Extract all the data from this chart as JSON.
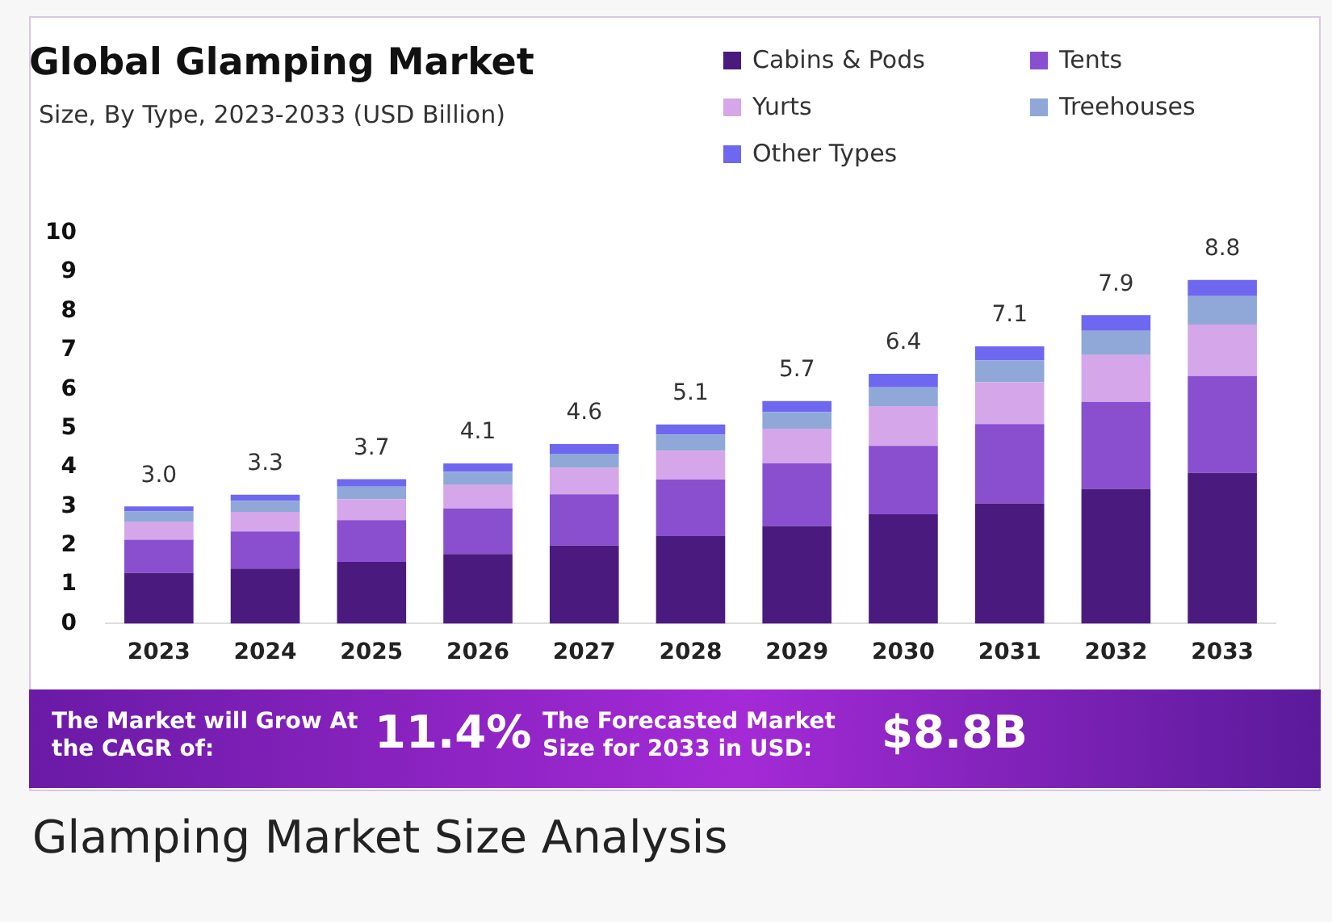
{
  "chart_data": {
    "type": "bar",
    "title": "Global Glamping Market",
    "subtitle": "Size, By Type, 2023-2033 (USD Billion)",
    "categories": [
      "2023",
      "2024",
      "2025",
      "2026",
      "2027",
      "2028",
      "2029",
      "2030",
      "2031",
      "2032",
      "2033"
    ],
    "stacked": true,
    "series": [
      {
        "name": "Cabins & Pods",
        "color": "#4b1a7e",
        "values": [
          1.3,
          1.41,
          1.58,
          1.78,
          2.0,
          2.24,
          2.5,
          2.8,
          3.08,
          3.45,
          3.86
        ]
      },
      {
        "name": "Tents",
        "color": "#8a4fcf",
        "values": [
          0.85,
          0.95,
          1.07,
          1.17,
          1.31,
          1.45,
          1.61,
          1.75,
          2.03,
          2.23,
          2.48
        ]
      },
      {
        "name": "Yurts",
        "color": "#d5a6ea",
        "values": [
          0.45,
          0.5,
          0.54,
          0.6,
          0.68,
          0.74,
          0.88,
          1.02,
          1.07,
          1.2,
          1.32
        ]
      },
      {
        "name": "Treehouses",
        "color": "#8fa8d8",
        "values": [
          0.27,
          0.28,
          0.32,
          0.34,
          0.36,
          0.41,
          0.43,
          0.48,
          0.56,
          0.62,
          0.73
        ]
      },
      {
        "name": "Other Types",
        "color": "#6e68f0",
        "values": [
          0.13,
          0.16,
          0.19,
          0.21,
          0.25,
          0.26,
          0.28,
          0.35,
          0.36,
          0.4,
          0.41
        ]
      }
    ],
    "totals": [
      "3.0",
      "3.3",
      "3.7",
      "4.1",
      "4.6",
      "5.1",
      "5.7",
      "6.4",
      "7.1",
      "7.9",
      "8.8"
    ],
    "ylim": [
      0,
      10
    ],
    "yticks": [
      0,
      1,
      2,
      3,
      4,
      5,
      6,
      7,
      8,
      9,
      10
    ],
    "grid": false,
    "legend": "top right",
    "annotations": [
      "The Market will Grow At the CAGR of:",
      "11.4%",
      "The Forecasted Market Size for 2033 in USD:",
      "$8.8B",
      "Glamping Market Size Analysis"
    ]
  }
}
